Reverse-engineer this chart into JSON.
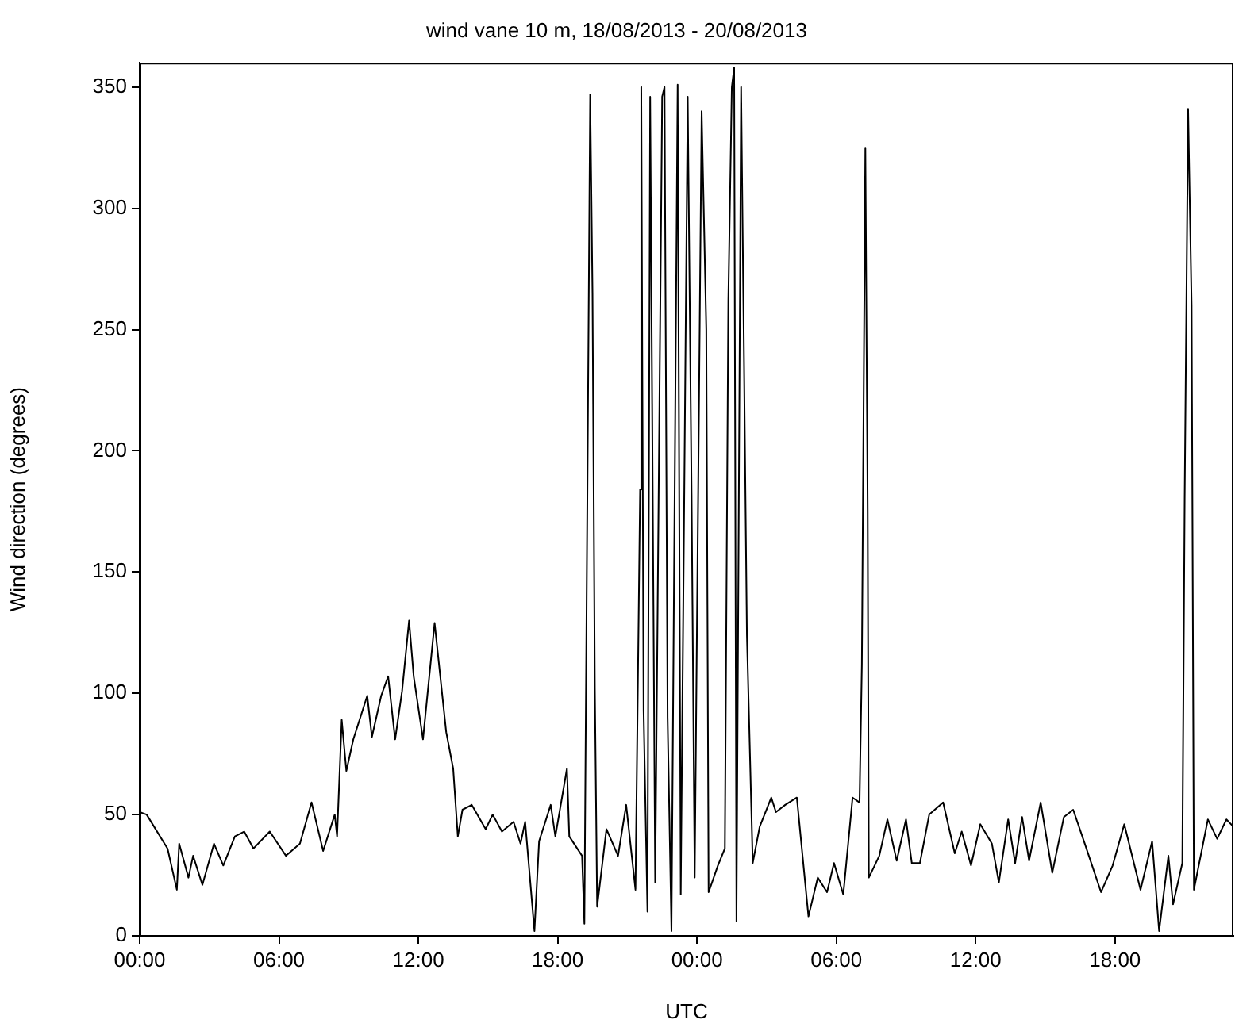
{
  "chart_data": {
    "type": "line",
    "title": "wind vane 10 m, 18/08/2013 - 20/08/2013",
    "xlabel": "UTC",
    "ylabel": "Wind direction (degrees)",
    "x": [
      "2013-08-18T00:00",
      "2013-08-18T00:18",
      "2013-08-18T01:12",
      "2013-08-18T01:36",
      "2013-08-18T01:42",
      "2013-08-18T02:06",
      "2013-08-18T02:18",
      "2013-08-18T02:42",
      "2013-08-18T03:12",
      "2013-08-18T03:36",
      "2013-08-18T04:06",
      "2013-08-18T04:30",
      "2013-08-18T04:54",
      "2013-08-18T05:36",
      "2013-08-18T06:18",
      "2013-08-18T06:54",
      "2013-08-18T07:24",
      "2013-08-18T07:54",
      "2013-08-18T08:24",
      "2013-08-18T08:30",
      "2013-08-18T08:42",
      "2013-08-18T08:54",
      "2013-08-18T09:12",
      "2013-08-18T09:48",
      "2013-08-18T10:00",
      "2013-08-18T10:24",
      "2013-08-18T10:42",
      "2013-08-18T11:00",
      "2013-08-18T11:18",
      "2013-08-18T11:36",
      "2013-08-18T11:48",
      "2013-08-18T12:12",
      "2013-08-18T12:42",
      "2013-08-18T13:12",
      "2013-08-18T13:30",
      "2013-08-18T13:42",
      "2013-08-18T13:54",
      "2013-08-18T14:18",
      "2013-08-18T14:54",
      "2013-08-18T15:12",
      "2013-08-18T15:36",
      "2013-08-18T16:06",
      "2013-08-18T16:24",
      "2013-08-18T16:36",
      "2013-08-18T17:00",
      "2013-08-18T17:12",
      "2013-08-18T17:42",
      "2013-08-18T17:54",
      "2013-08-18T18:24",
      "2013-08-18T18:30",
      "2013-08-18T19:03",
      "2013-08-18T19:09",
      "2013-08-18T19:24",
      "2013-08-18T19:30",
      "2013-08-18T19:36",
      "2013-08-18T19:42",
      "2013-08-18T20:06",
      "2013-08-18T20:36",
      "2013-08-18T20:57",
      "2013-08-18T21:21",
      "2013-08-18T21:33",
      "2013-08-18T21:36",
      "2013-08-18T21:42",
      "2013-08-18T21:52",
      "2013-08-18T21:59",
      "2013-08-18T22:12",
      "2013-08-18T22:30",
      "2013-08-18T22:36",
      "2013-08-18T22:44",
      "2013-08-18T22:54",
      "2013-08-18T23:10",
      "2013-08-18T23:18",
      "2013-08-18T23:36",
      "2013-08-18T23:46",
      "2013-08-18T23:54",
      "2013-08-19T00:12",
      "2013-08-19T00:24",
      "2013-08-19T00:30",
      "2013-08-19T00:54",
      "2013-08-19T01:12",
      "2013-08-19T01:21",
      "2013-08-19T01:30",
      "2013-08-19T01:36",
      "2013-08-19T01:42",
      "2013-08-19T01:54",
      "2013-08-19T02:09",
      "2013-08-19T02:24",
      "2013-08-19T02:42",
      "2013-08-19T03:12",
      "2013-08-19T03:24",
      "2013-08-19T03:48",
      "2013-08-19T04:18",
      "2013-08-19T04:48",
      "2013-08-19T05:12",
      "2013-08-19T05:36",
      "2013-08-19T05:54",
      "2013-08-19T06:18",
      "2013-08-19T06:42",
      "2013-08-19T07:00",
      "2013-08-19T07:06",
      "2013-08-19T07:15",
      "2013-08-19T07:21",
      "2013-08-19T07:24",
      "2013-08-19T07:51",
      "2013-08-19T08:12",
      "2013-08-19T08:36",
      "2013-08-19T09:00",
      "2013-08-19T09:15",
      "2013-08-19T09:36",
      "2013-08-19T10:00",
      "2013-08-19T10:36",
      "2013-08-19T11:06",
      "2013-08-19T11:24",
      "2013-08-19T11:48",
      "2013-08-19T12:12",
      "2013-08-19T12:42",
      "2013-08-19T13:00",
      "2013-08-19T13:24",
      "2013-08-19T13:42",
      "2013-08-19T14:00",
      "2013-08-19T14:18",
      "2013-08-19T14:48",
      "2013-08-19T15:18",
      "2013-08-19T15:48",
      "2013-08-19T16:12",
      "2013-08-19T16:42",
      "2013-08-19T17:24",
      "2013-08-19T17:54",
      "2013-08-19T18:24",
      "2013-08-19T19:06",
      "2013-08-19T19:36",
      "2013-08-19T19:54",
      "2013-08-19T20:18",
      "2013-08-19T20:30",
      "2013-08-19T20:54",
      "2013-08-19T21:00",
      "2013-08-19T21:09",
      "2013-08-19T21:18",
      "2013-08-19T21:24",
      "2013-08-19T22:00",
      "2013-08-19T22:24",
      "2013-08-19T22:48",
      "2013-08-19T23:06"
    ],
    "series": [
      {
        "color": "#000000",
        "values": [
          51,
          50,
          36,
          19,
          38,
          24,
          33,
          21,
          38,
          29,
          41,
          43,
          36,
          43,
          33,
          38,
          55,
          35,
          50,
          41,
          89,
          68,
          81,
          99,
          82,
          99,
          107,
          81,
          101,
          130,
          107,
          81,
          129,
          84,
          69,
          41,
          52,
          54,
          44,
          50,
          43,
          47,
          38,
          47,
          2,
          39,
          54,
          41,
          69,
          41,
          33,
          5,
          347,
          265,
          102,
          12,
          44,
          33,
          54,
          19,
          184,
          350,
          93,
          10,
          346,
          22,
          346,
          350,
          90,
          2,
          351,
          17,
          346,
          182,
          24,
          340,
          250,
          18,
          29,
          36,
          262,
          350,
          358,
          6,
          350,
          124,
          30,
          45,
          57,
          51,
          54,
          57,
          8,
          24,
          18,
          30,
          17,
          57,
          55,
          112,
          325,
          175,
          24,
          33,
          48,
          31,
          48,
          30,
          30,
          50,
          55,
          34,
          43,
          29,
          46,
          38,
          22,
          48,
          30,
          49,
          31,
          55,
          26,
          49,
          52,
          38,
          18,
          29,
          46,
          19,
          39,
          2,
          33,
          13,
          30,
          180,
          341,
          260,
          19,
          48,
          40,
          48,
          45
        ]
      }
    ],
    "xlim": [
      "2013-08-18T00:00",
      "2013-08-19T23:06"
    ],
    "xticks": [
      {
        "value": "2013-08-18T00:00",
        "label": "00:00"
      },
      {
        "value": "2013-08-18T06:00",
        "label": "06:00"
      },
      {
        "value": "2013-08-18T12:00",
        "label": "12:00"
      },
      {
        "value": "2013-08-18T18:00",
        "label": "18:00"
      },
      {
        "value": "2013-08-19T00:00",
        "label": "00:00"
      },
      {
        "value": "2013-08-19T06:00",
        "label": "06:00"
      },
      {
        "value": "2013-08-19T12:00",
        "label": "12:00"
      },
      {
        "value": "2013-08-19T18:00",
        "label": "18:00"
      }
    ],
    "ylim": [
      0,
      360
    ],
    "yticks": [
      0,
      50,
      100,
      150,
      200,
      250,
      300,
      350
    ],
    "grid": false,
    "legend": false,
    "marker": "none",
    "line_style": "solid"
  }
}
